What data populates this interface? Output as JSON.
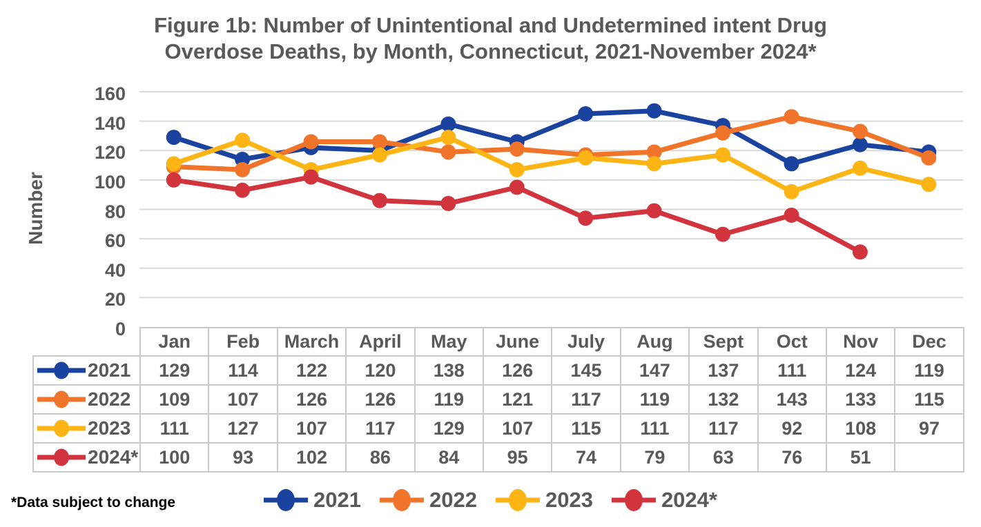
{
  "title": {
    "line1": "Figure 1b: Number of Unintentional and Undetermined intent Drug",
    "line2": "Overdose Deaths, by Month, Connecticut, 2021-November 2024*"
  },
  "footnote": "*Data subject to change",
  "colors": {
    "title_text": "#595959",
    "axis_text": "#595959",
    "table_text": "#595959",
    "gridline": "#D9D9D9",
    "table_border": "#C9C9C9",
    "footnote_text": "#000000"
  },
  "chart_data": {
    "type": "line",
    "title": "Figure 1b: Number of Unintentional and Undetermined intent Drug Overdose Deaths, by Month, Connecticut, 2021-November 2024*",
    "xlabel": "",
    "ylabel": "Number",
    "ylim": [
      0,
      160
    ],
    "ytick_step": 20,
    "yticks": [
      160,
      140,
      120,
      100,
      80,
      60,
      40,
      20,
      0
    ],
    "grid": "horizontal",
    "legend_position": "bottom",
    "categories": [
      "Jan",
      "Feb",
      "March",
      "April",
      "May",
      "June",
      "July",
      "Aug",
      "Sept",
      "Oct",
      "Nov",
      "Dec"
    ],
    "series": [
      {
        "name": "2021",
        "color": "#1A43A0",
        "values": [
          129,
          114,
          122,
          120,
          138,
          126,
          145,
          147,
          137,
          111,
          124,
          119
        ]
      },
      {
        "name": "2022",
        "color": "#F0752B",
        "values": [
          109,
          107,
          126,
          126,
          119,
          121,
          117,
          119,
          132,
          143,
          133,
          115
        ]
      },
      {
        "name": "2023",
        "color": "#FDB515",
        "values": [
          111,
          127,
          107,
          117,
          129,
          107,
          115,
          111,
          117,
          92,
          108,
          97
        ]
      },
      {
        "name": "2024*",
        "color": "#D2343E",
        "values": [
          100,
          93,
          102,
          86,
          84,
          95,
          74,
          79,
          63,
          76,
          51,
          null
        ]
      }
    ]
  }
}
